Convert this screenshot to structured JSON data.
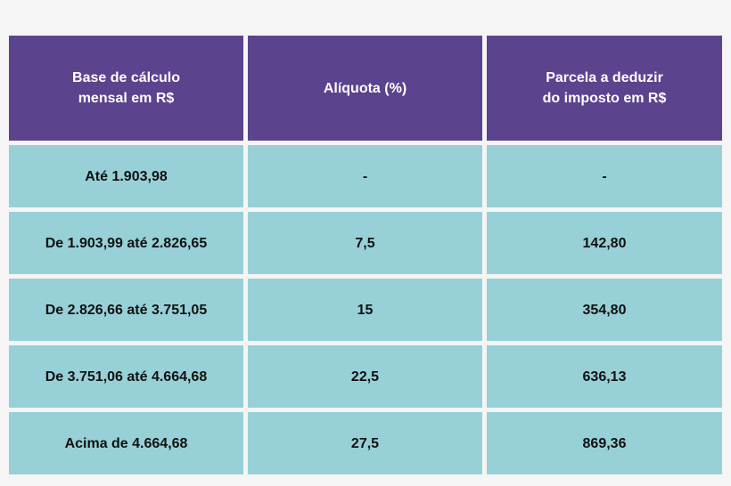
{
  "colors": {
    "header_bg": "#5c438e",
    "row_bg": "#97d1d7",
    "page_bg": "#f5f5f5",
    "header_text": "#ffffff",
    "body_text": "#111111"
  },
  "table": {
    "headers": [
      "Base de cálculo\nmensal em R$",
      "Alíquota (%)",
      "Parcela a deduzir\ndo imposto em R$"
    ],
    "rows": [
      [
        "Até 1.903,98",
        "-",
        "-"
      ],
      [
        "De 1.903,99 até 2.826,65",
        "7,5",
        "142,80"
      ],
      [
        "De 2.826,66 até 3.751,05",
        "15",
        "354,80"
      ],
      [
        "De 3.751,06 até 4.664,68",
        "22,5",
        "636,13"
      ],
      [
        "Acima de 4.664,68",
        "27,5",
        "869,36"
      ]
    ]
  }
}
